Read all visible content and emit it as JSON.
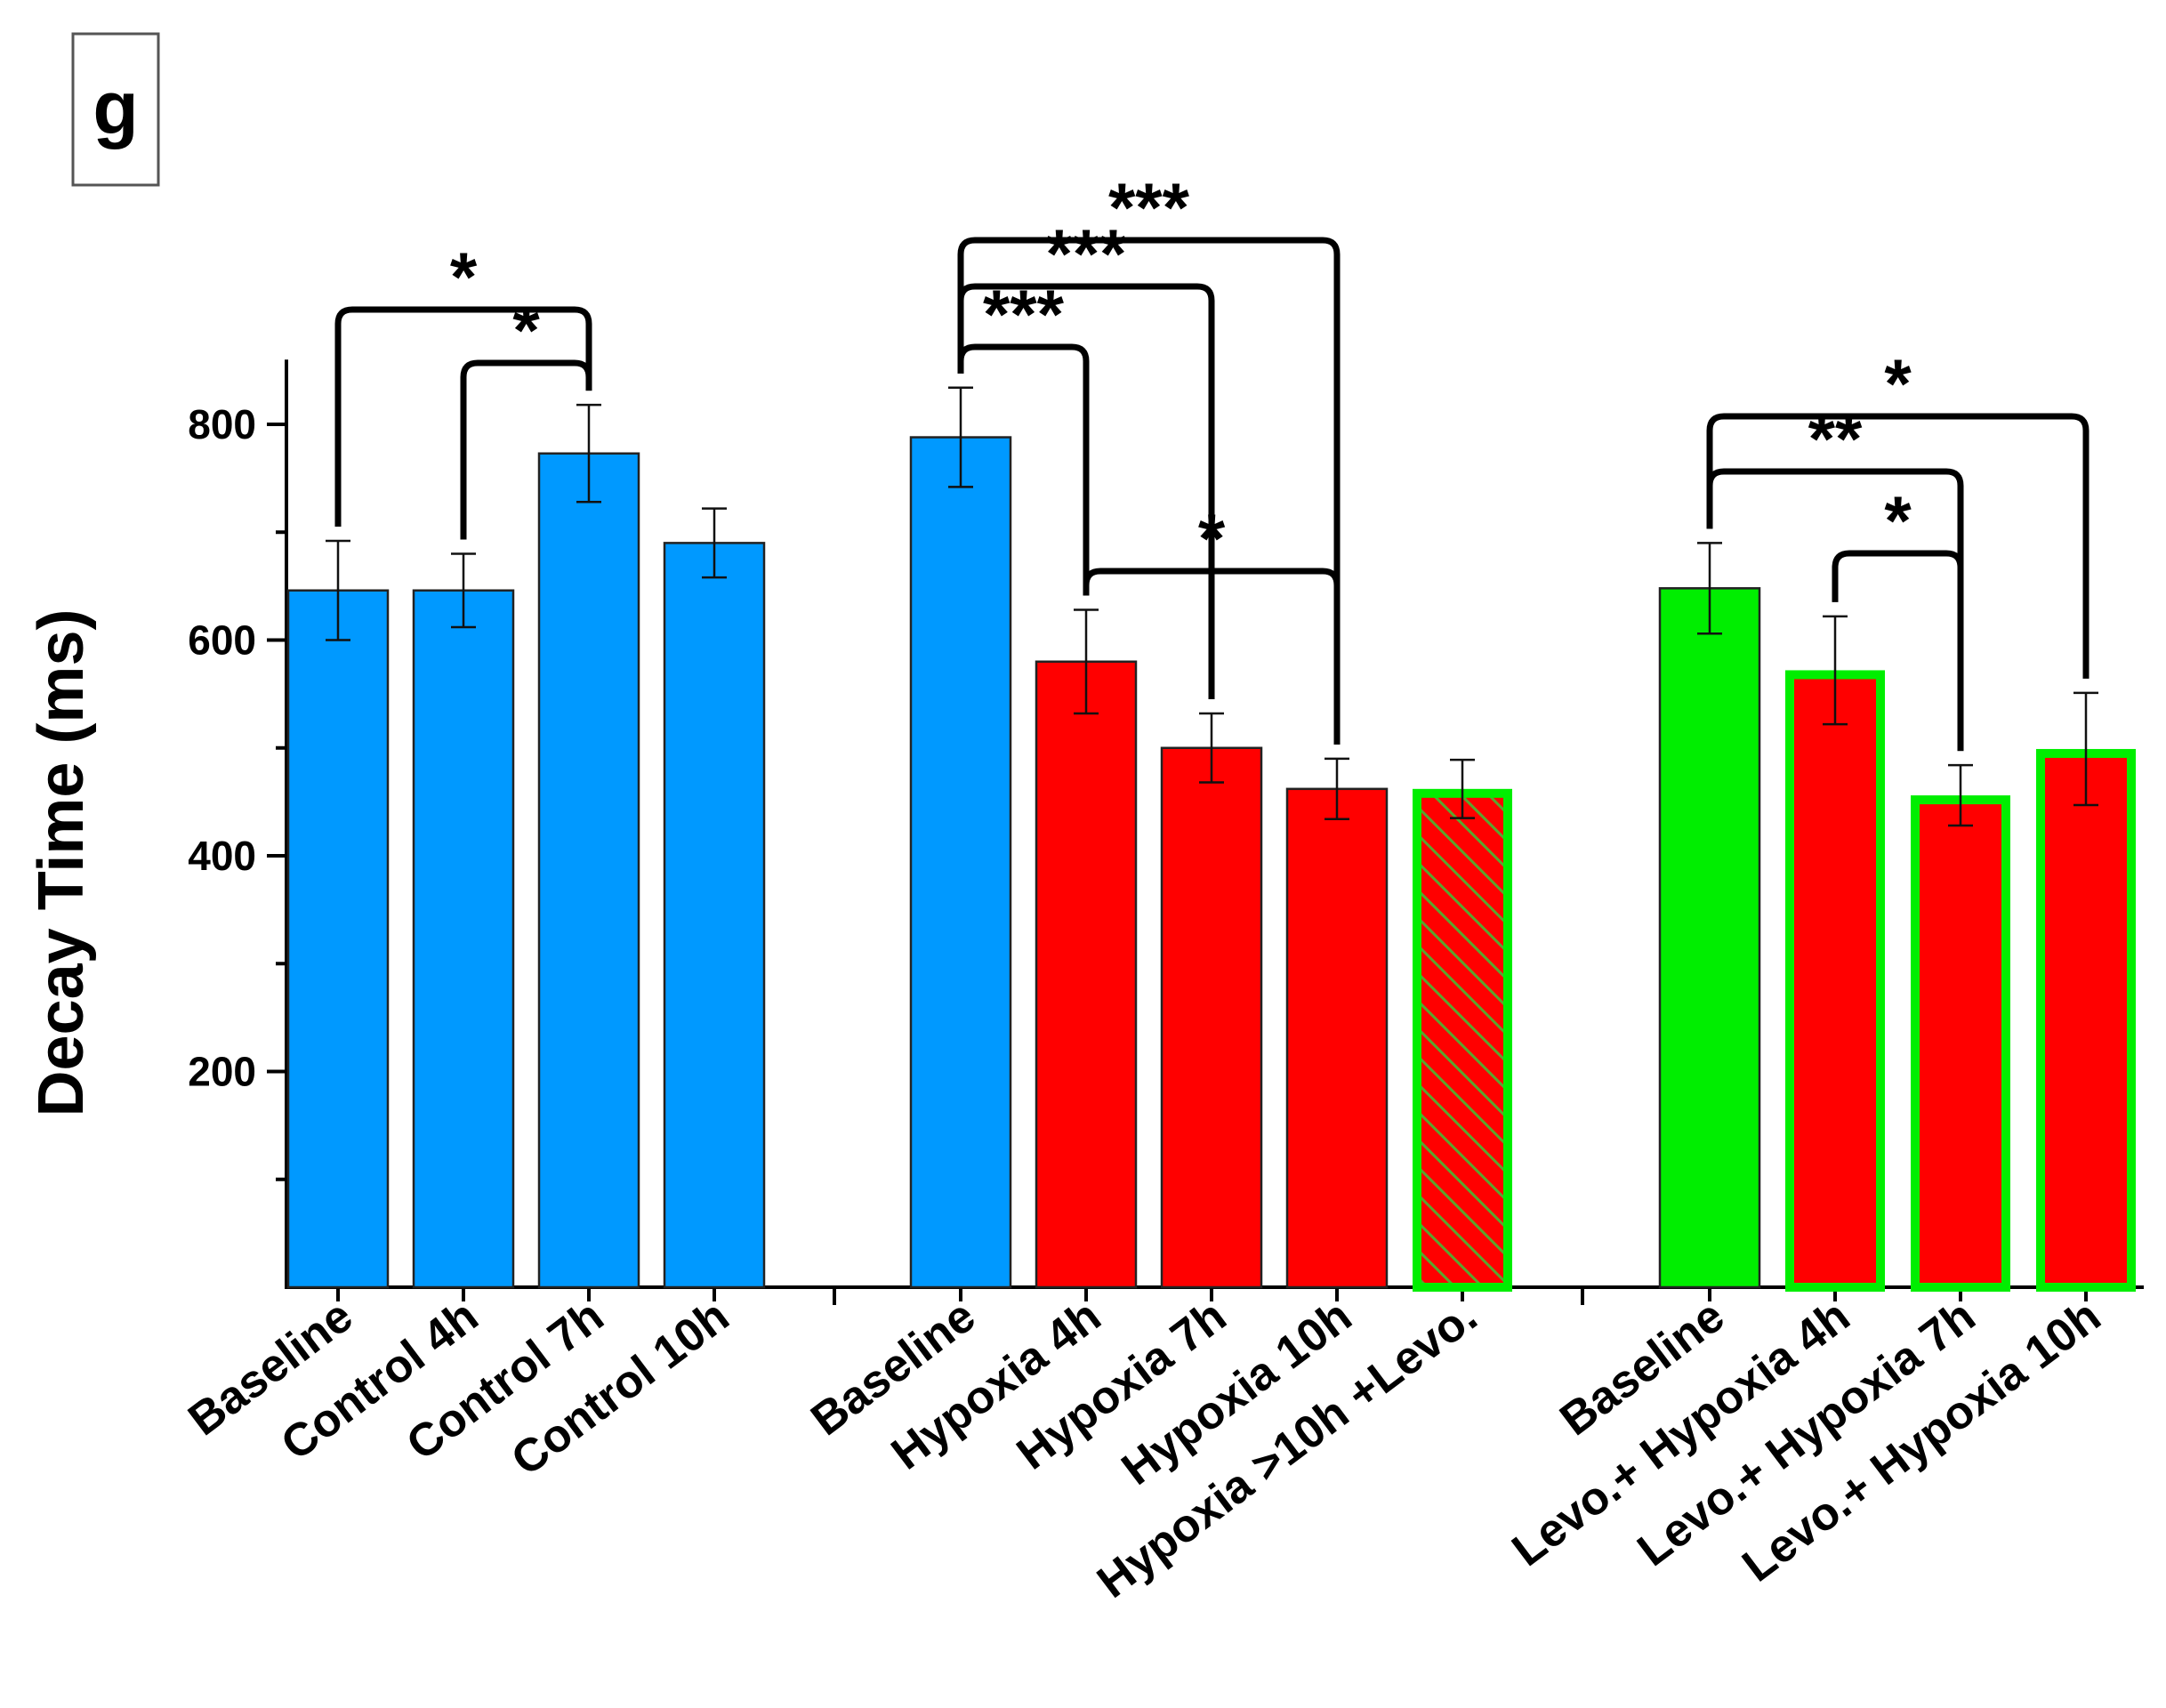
{
  "panel_label": "g",
  "colors": {
    "control": "#0099FF",
    "hypoxia": "#FF0000",
    "levo": "#00EE00",
    "hatch": "#5aa52e",
    "axis": "#000000"
  },
  "chart_data": {
    "type": "bar",
    "title": "",
    "xlabel": "",
    "ylabel": "Decay Time (ms)",
    "ylim": [
      0,
      860
    ],
    "yticks": [
      200,
      400,
      600,
      800
    ],
    "y_minor_step": 100,
    "groups": [
      {
        "name": "Control",
        "bars": [
          {
            "label": "Baseline",
            "value": 646,
            "error": 46,
            "fill": "control",
            "outline": "none",
            "hatch": false
          },
          {
            "label": "Control 4h",
            "value": 646,
            "error": 34,
            "fill": "control",
            "outline": "none",
            "hatch": false
          },
          {
            "label": "Control 7h",
            "value": 773,
            "error": 45,
            "fill": "control",
            "outline": "none",
            "hatch": false
          },
          {
            "label": "Control 10h",
            "value": 690,
            "error": 32,
            "fill": "control",
            "outline": "none",
            "hatch": false
          }
        ]
      },
      {
        "name": "Hypoxia",
        "bars": [
          {
            "label": "Baseline",
            "value": 788,
            "error": 46,
            "fill": "control",
            "outline": "none",
            "hatch": false
          },
          {
            "label": "Hypoxia 4h",
            "value": 580,
            "error": 48,
            "fill": "hypoxia",
            "outline": "none",
            "hatch": false
          },
          {
            "label": "Hypoxia 7h",
            "value": 500,
            "error": 32,
            "fill": "hypoxia",
            "outline": "none",
            "hatch": false
          },
          {
            "label": "Hypoxia 10h",
            "value": 462,
            "error": 28,
            "fill": "hypoxia",
            "outline": "none",
            "hatch": false
          },
          {
            "label": "Hypoxia >10h +Levo.",
            "value": 462,
            "error": 27,
            "fill": "hypoxia",
            "outline": "levo",
            "hatch": true
          }
        ]
      },
      {
        "name": "Levo.+ Hypoxia",
        "bars": [
          {
            "label": "Baseline",
            "value": 648,
            "error": 42,
            "fill": "levo",
            "outline": "none",
            "hatch": false
          },
          {
            "label": "Levo.+ Hypoxia 4h",
            "value": 572,
            "error": 50,
            "fill": "hypoxia",
            "outline": "levo",
            "hatch": false
          },
          {
            "label": "Levo.+ Hypoxia 7h",
            "value": 456,
            "error": 28,
            "fill": "hypoxia",
            "outline": "levo",
            "hatch": false
          },
          {
            "label": "Levo.+ Hypoxia 10h",
            "value": 499,
            "error": 52,
            "fill": "hypoxia",
            "outline": "levo",
            "hatch": false
          }
        ]
      }
    ],
    "significance": [
      {
        "from": [
          0,
          0
        ],
        "to": [
          0,
          2
        ],
        "stars": "*"
      },
      {
        "from": [
          0,
          1
        ],
        "to": [
          0,
          2
        ],
        "stars": "*"
      },
      {
        "from": [
          1,
          0
        ],
        "to": [
          1,
          1
        ],
        "stars": "***"
      },
      {
        "from": [
          1,
          0
        ],
        "to": [
          1,
          2
        ],
        "stars": "***"
      },
      {
        "from": [
          1,
          0
        ],
        "to": [
          1,
          3
        ],
        "stars": "***"
      },
      {
        "from": [
          1,
          1
        ],
        "to": [
          1,
          3
        ],
        "stars": "*"
      },
      {
        "from": [
          2,
          0
        ],
        "to": [
          2,
          3
        ],
        "stars": "*"
      },
      {
        "from": [
          2,
          0
        ],
        "to": [
          2,
          2
        ],
        "stars": "**"
      },
      {
        "from": [
          2,
          1
        ],
        "to": [
          2,
          2
        ],
        "stars": "*"
      }
    ]
  }
}
